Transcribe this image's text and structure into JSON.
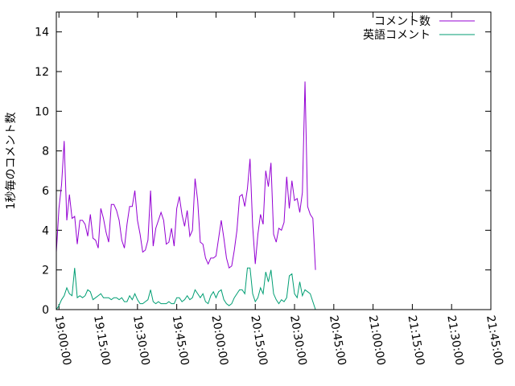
{
  "chart_data": {
    "type": "line",
    "title": "",
    "xlabel": "",
    "ylabel": "1秒毎のコメント数",
    "ylim": [
      0,
      15
    ],
    "xlim": [
      "18:59:00",
      "21:45:00"
    ],
    "grid": false,
    "legend_position": "top-right",
    "y_ticks": [
      "0",
      "2",
      "4",
      "6",
      "8",
      "10",
      "12",
      "14"
    ],
    "x_ticks": [
      "19:00:00",
      "19:15:00",
      "19:30:00",
      "19:45:00",
      "20:00:00",
      "20:15:00",
      "20:30:00",
      "20:45:00",
      "21:00:00",
      "21:15:00",
      "21:30:00",
      "21:45:00"
    ],
    "series": [
      {
        "name": "コメント数",
        "color": "#9400d3",
        "points": [
          [
            "18:59:00",
            2.9
          ],
          [
            "19:00:00",
            5.1
          ],
          [
            "19:01:00",
            6.3
          ],
          [
            "19:02:00",
            8.5
          ],
          [
            "19:03:00",
            4.5
          ],
          [
            "19:04:00",
            5.8
          ],
          [
            "19:05:00",
            4.6
          ],
          [
            "19:06:00",
            4.7
          ],
          [
            "19:07:00",
            3.3
          ],
          [
            "19:08:00",
            4.5
          ],
          [
            "19:09:00",
            4.5
          ],
          [
            "19:10:00",
            4.3
          ],
          [
            "19:11:00",
            3.7
          ],
          [
            "19:12:00",
            4.8
          ],
          [
            "19:13:00",
            3.6
          ],
          [
            "19:14:00",
            3.5
          ],
          [
            "19:15:00",
            3.1
          ],
          [
            "19:16:00",
            5.1
          ],
          [
            "19:17:00",
            4.6
          ],
          [
            "19:18:00",
            3.9
          ],
          [
            "19:19:00",
            3.4
          ],
          [
            "19:20:00",
            5.3
          ],
          [
            "19:21:00",
            5.3
          ],
          [
            "19:22:00",
            5.0
          ],
          [
            "19:23:00",
            4.5
          ],
          [
            "19:24:00",
            3.5
          ],
          [
            "19:25:00",
            3.1
          ],
          [
            "19:26:00",
            4.3
          ],
          [
            "19:27:00",
            5.2
          ],
          [
            "19:28:00",
            5.2
          ],
          [
            "19:29:00",
            6.0
          ],
          [
            "19:30:00",
            4.5
          ],
          [
            "19:31:00",
            3.8
          ],
          [
            "19:32:00",
            2.9
          ],
          [
            "19:33:00",
            3.0
          ],
          [
            "19:34:00",
            3.5
          ],
          [
            "19:35:00",
            6.0
          ],
          [
            "19:36:00",
            3.2
          ],
          [
            "19:37:00",
            4.1
          ],
          [
            "19:38:00",
            4.5
          ],
          [
            "19:39:00",
            4.9
          ],
          [
            "19:40:00",
            4.5
          ],
          [
            "19:41:00",
            3.3
          ],
          [
            "19:42:00",
            3.4
          ],
          [
            "19:43:00",
            4.1
          ],
          [
            "19:44:00",
            3.2
          ],
          [
            "19:45:00",
            5.1
          ],
          [
            "19:46:00",
            5.7
          ],
          [
            "19:47:00",
            4.8
          ],
          [
            "19:48:00",
            4.2
          ],
          [
            "19:49:00",
            5.0
          ],
          [
            "19:50:00",
            3.7
          ],
          [
            "19:51:00",
            4.0
          ],
          [
            "19:52:00",
            6.6
          ],
          [
            "19:53:00",
            5.5
          ],
          [
            "19:54:00",
            3.4
          ],
          [
            "19:55:00",
            3.3
          ],
          [
            "19:56:00",
            2.6
          ],
          [
            "19:57:00",
            2.3
          ],
          [
            "19:58:00",
            2.6
          ],
          [
            "19:59:00",
            2.6
          ],
          [
            "20:00:00",
            2.7
          ],
          [
            "20:01:00",
            3.6
          ],
          [
            "20:02:00",
            4.5
          ],
          [
            "20:03:00",
            3.6
          ],
          [
            "20:04:00",
            2.6
          ],
          [
            "20:05:00",
            2.1
          ],
          [
            "20:06:00",
            2.2
          ],
          [
            "20:07:00",
            3.0
          ],
          [
            "20:08:00",
            4.0
          ],
          [
            "20:09:00",
            5.7
          ],
          [
            "20:10:00",
            5.8
          ],
          [
            "20:11:00",
            5.2
          ],
          [
            "20:12:00",
            6.1
          ],
          [
            "20:13:00",
            7.6
          ],
          [
            "20:14:00",
            4.2
          ],
          [
            "20:15:00",
            2.3
          ],
          [
            "20:16:00",
            3.8
          ],
          [
            "20:17:00",
            4.8
          ],
          [
            "20:18:00",
            4.3
          ],
          [
            "20:19:00",
            7.0
          ],
          [
            "20:20:00",
            6.2
          ],
          [
            "20:21:00",
            7.4
          ],
          [
            "20:22:00",
            3.8
          ],
          [
            "20:23:00",
            3.4
          ],
          [
            "20:24:00",
            4.1
          ],
          [
            "20:25:00",
            4.0
          ],
          [
            "20:26:00",
            4.4
          ],
          [
            "20:27:00",
            6.7
          ],
          [
            "20:28:00",
            5.1
          ],
          [
            "20:29:00",
            6.5
          ],
          [
            "20:30:00",
            5.5
          ],
          [
            "20:31:00",
            5.6
          ],
          [
            "20:32:00",
            4.9
          ],
          [
            "20:33:00",
            5.9
          ],
          [
            "20:34:00",
            11.5
          ],
          [
            "20:35:00",
            5.2
          ],
          [
            "20:36:00",
            4.8
          ],
          [
            "20:37:00",
            4.6
          ],
          [
            "20:38:00",
            2.0
          ]
        ]
      },
      {
        "name": "英語コメント",
        "color": "#009e73",
        "points": [
          [
            "18:59:00",
            0.0
          ],
          [
            "19:00:00",
            0.2
          ],
          [
            "19:01:00",
            0.5
          ],
          [
            "19:02:00",
            0.7
          ],
          [
            "19:03:00",
            1.1
          ],
          [
            "19:04:00",
            0.8
          ],
          [
            "19:05:00",
            0.7
          ],
          [
            "19:06:00",
            2.1
          ],
          [
            "19:07:00",
            0.6
          ],
          [
            "19:08:00",
            0.7
          ],
          [
            "19:09:00",
            0.6
          ],
          [
            "19:10:00",
            0.7
          ],
          [
            "19:11:00",
            1.0
          ],
          [
            "19:12:00",
            0.9
          ],
          [
            "19:13:00",
            0.5
          ],
          [
            "19:14:00",
            0.6
          ],
          [
            "19:15:00",
            0.7
          ],
          [
            "19:16:00",
            0.8
          ],
          [
            "19:17:00",
            0.6
          ],
          [
            "19:18:00",
            0.6
          ],
          [
            "19:19:00",
            0.6
          ],
          [
            "19:20:00",
            0.5
          ],
          [
            "19:21:00",
            0.6
          ],
          [
            "19:22:00",
            0.6
          ],
          [
            "19:23:00",
            0.5
          ],
          [
            "19:24:00",
            0.6
          ],
          [
            "19:25:00",
            0.4
          ],
          [
            "19:26:00",
            0.4
          ],
          [
            "19:27:00",
            0.7
          ],
          [
            "19:28:00",
            0.5
          ],
          [
            "19:29:00",
            0.8
          ],
          [
            "19:30:00",
            0.5
          ],
          [
            "19:31:00",
            0.3
          ],
          [
            "19:32:00",
            0.3
          ],
          [
            "19:33:00",
            0.4
          ],
          [
            "19:34:00",
            0.5
          ],
          [
            "19:35:00",
            1.0
          ],
          [
            "19:36:00",
            0.4
          ],
          [
            "19:37:00",
            0.3
          ],
          [
            "19:38:00",
            0.4
          ],
          [
            "19:39:00",
            0.3
          ],
          [
            "19:40:00",
            0.3
          ],
          [
            "19:41:00",
            0.3
          ],
          [
            "19:42:00",
            0.4
          ],
          [
            "19:43:00",
            0.3
          ],
          [
            "19:44:00",
            0.3
          ],
          [
            "19:45:00",
            0.6
          ],
          [
            "19:46:00",
            0.6
          ],
          [
            "19:47:00",
            0.4
          ],
          [
            "19:48:00",
            0.5
          ],
          [
            "19:49:00",
            0.7
          ],
          [
            "19:50:00",
            0.5
          ],
          [
            "19:51:00",
            0.6
          ],
          [
            "19:52:00",
            1.0
          ],
          [
            "19:53:00",
            0.8
          ],
          [
            "19:54:00",
            0.6
          ],
          [
            "19:55:00",
            0.8
          ],
          [
            "19:56:00",
            0.4
          ],
          [
            "19:57:00",
            0.3
          ],
          [
            "19:58:00",
            0.7
          ],
          [
            "19:59:00",
            0.9
          ],
          [
            "20:00:00",
            0.6
          ],
          [
            "20:01:00",
            0.9
          ],
          [
            "20:02:00",
            1.0
          ],
          [
            "20:03:00",
            0.5
          ],
          [
            "20:04:00",
            0.3
          ],
          [
            "20:05:00",
            0.2
          ],
          [
            "20:06:00",
            0.3
          ],
          [
            "20:07:00",
            0.6
          ],
          [
            "20:08:00",
            0.8
          ],
          [
            "20:09:00",
            1.0
          ],
          [
            "20:10:00",
            1.0
          ],
          [
            "20:11:00",
            0.8
          ],
          [
            "20:12:00",
            2.1
          ],
          [
            "20:13:00",
            2.1
          ],
          [
            "20:14:00",
            0.8
          ],
          [
            "20:15:00",
            0.4
          ],
          [
            "20:16:00",
            0.6
          ],
          [
            "20:17:00",
            1.1
          ],
          [
            "20:18:00",
            0.8
          ],
          [
            "20:19:00",
            1.9
          ],
          [
            "20:20:00",
            1.4
          ],
          [
            "20:21:00",
            2.0
          ],
          [
            "20:22:00",
            0.8
          ],
          [
            "20:23:00",
            0.5
          ],
          [
            "20:24:00",
            0.3
          ],
          [
            "20:25:00",
            0.5
          ],
          [
            "20:26:00",
            0.4
          ],
          [
            "20:27:00",
            0.6
          ],
          [
            "20:28:00",
            1.7
          ],
          [
            "20:29:00",
            1.8
          ],
          [
            "20:30:00",
            0.8
          ],
          [
            "20:31:00",
            0.6
          ],
          [
            "20:32:00",
            1.4
          ],
          [
            "20:33:00",
            0.7
          ],
          [
            "20:34:00",
            1.0
          ],
          [
            "20:35:00",
            0.9
          ],
          [
            "20:36:00",
            0.8
          ],
          [
            "20:37:00",
            0.4
          ],
          [
            "20:38:00",
            0.0
          ]
        ]
      }
    ]
  }
}
